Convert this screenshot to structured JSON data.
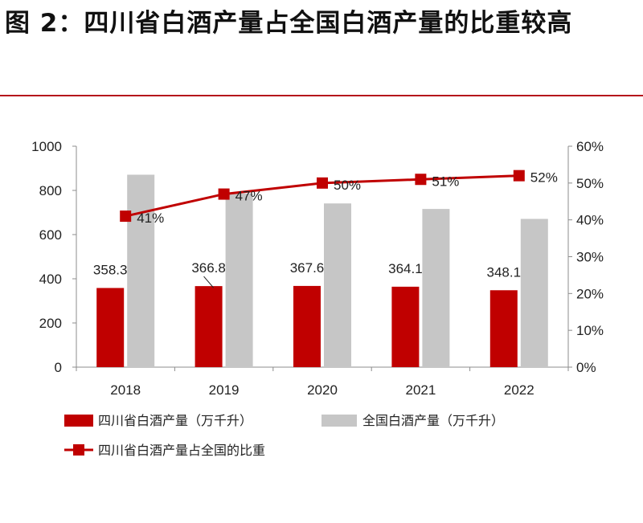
{
  "figure": {
    "title": "图 2：四川省白酒产量占全国白酒产量的比重较高"
  },
  "colors": {
    "sichuan_bar": "#c00000",
    "national_bar": "#c6c6c6",
    "share_line": "#c00000",
    "rule": "#b5121b"
  },
  "chart_data": {
    "type": "bar",
    "categories": [
      "2018",
      "2019",
      "2020",
      "2021",
      "2022"
    ],
    "series": [
      {
        "name": "四川省白酒产量（万千升）",
        "type": "bar",
        "axis": "left",
        "values": [
          358.3,
          366.8,
          367.6,
          364.1,
          348.1
        ],
        "data_labels": [
          "358.3",
          "366.8",
          "367.6",
          "364.1",
          "348.1"
        ]
      },
      {
        "name": "全国白酒产量（万千升）",
        "type": "bar",
        "axis": "left",
        "values": [
          871,
          786,
          741,
          716,
          671
        ]
      },
      {
        "name": "四川省白酒产量占全国的比重",
        "type": "line",
        "axis": "right",
        "values": [
          0.41,
          0.47,
          0.5,
          0.51,
          0.52
        ],
        "data_labels": [
          "41%",
          "47%",
          "50%",
          "51%",
          "52%"
        ]
      }
    ],
    "y_left": {
      "range": [
        0,
        1000
      ],
      "ticks": [
        "0",
        "200",
        "400",
        "600",
        "800",
        "1000"
      ]
    },
    "y_right": {
      "range": [
        0,
        0.6
      ],
      "ticks": [
        "0%",
        "10%",
        "20%",
        "30%",
        "40%",
        "50%",
        "60%"
      ]
    },
    "legend_position": "bottom",
    "grid": false
  }
}
